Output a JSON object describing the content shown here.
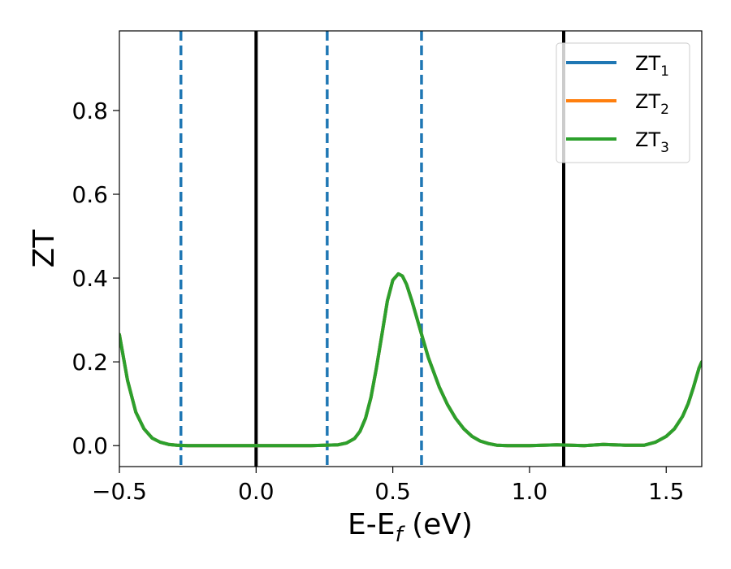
{
  "chart_data": {
    "type": "line",
    "xlabel_main": "E-E",
    "xlabel_sub": "f",
    "xlabel_unit": " (eV)",
    "ylabel": "ZT",
    "xlim": [
      -0.5,
      1.63
    ],
    "ylim": [
      -0.05,
      0.99
    ],
    "xticks": [
      -0.5,
      0.0,
      0.5,
      1.0,
      1.5
    ],
    "xtick_labels": [
      "−0.5",
      "0.0",
      "0.5",
      "1.0",
      "1.5"
    ],
    "yticks": [
      0.0,
      0.2,
      0.4,
      0.6,
      0.8
    ],
    "ytick_labels": [
      "0.0",
      "0.2",
      "0.4",
      "0.6",
      "0.8"
    ],
    "grid": false,
    "legend_position": "top-right",
    "vlines_solid": [
      0.0,
      1.125
    ],
    "vlines_dashed": [
      -0.275,
      0.26,
      0.605
    ],
    "colors": {
      "solid_vline": "#000000",
      "dashed_vline": "#1f77b4"
    },
    "series": [
      {
        "name": "ZT",
        "sub": "1",
        "color": "#1f77b4",
        "x": [
          -0.5,
          -0.47,
          -0.44,
          -0.41,
          -0.38,
          -0.35,
          -0.32,
          -0.29,
          -0.25,
          -0.2,
          -0.1,
          0.0,
          0.1,
          0.2,
          0.3,
          0.33,
          0.36,
          0.38,
          0.4,
          0.42,
          0.44,
          0.46,
          0.48,
          0.5,
          0.52,
          0.535,
          0.55,
          0.57,
          0.59,
          0.61,
          0.63,
          0.65,
          0.67,
          0.7,
          0.73,
          0.76,
          0.79,
          0.82,
          0.85,
          0.88,
          0.92,
          1.0,
          1.1,
          1.2,
          1.27,
          1.35,
          1.42,
          1.46,
          1.5,
          1.53,
          1.56,
          1.58,
          1.6,
          1.62,
          1.63
        ],
        "y": [
          0.265,
          0.155,
          0.08,
          0.04,
          0.018,
          0.008,
          0.003,
          0.001,
          0.0,
          0.0,
          0.0,
          0.0,
          0.0,
          0.0,
          0.002,
          0.006,
          0.017,
          0.034,
          0.065,
          0.115,
          0.185,
          0.265,
          0.345,
          0.395,
          0.41,
          0.405,
          0.385,
          0.345,
          0.3,
          0.255,
          0.21,
          0.175,
          0.14,
          0.098,
          0.065,
          0.04,
          0.022,
          0.011,
          0.005,
          0.001,
          0.0,
          0.0,
          0.002,
          0.0,
          0.003,
          0.001,
          0.001,
          0.008,
          0.022,
          0.04,
          0.07,
          0.1,
          0.14,
          0.185,
          0.2
        ]
      },
      {
        "name": "ZT",
        "sub": "2",
        "color": "#ff7f0e",
        "x": [
          -0.5,
          -0.47,
          -0.44,
          -0.41,
          -0.38,
          -0.35,
          -0.32,
          -0.29,
          -0.25,
          -0.2,
          -0.1,
          0.0,
          0.1,
          0.2,
          0.3,
          0.33,
          0.36,
          0.38,
          0.4,
          0.42,
          0.44,
          0.46,
          0.48,
          0.5,
          0.52,
          0.535,
          0.55,
          0.57,
          0.59,
          0.61,
          0.63,
          0.65,
          0.67,
          0.7,
          0.73,
          0.76,
          0.79,
          0.82,
          0.85,
          0.88,
          0.92,
          1.0,
          1.1,
          1.2,
          1.27,
          1.35,
          1.42,
          1.46,
          1.5,
          1.53,
          1.56,
          1.58,
          1.6,
          1.62,
          1.63
        ],
        "y": [
          0.265,
          0.155,
          0.08,
          0.04,
          0.018,
          0.008,
          0.003,
          0.001,
          0.0,
          0.0,
          0.0,
          0.0,
          0.0,
          0.0,
          0.002,
          0.006,
          0.017,
          0.034,
          0.065,
          0.115,
          0.185,
          0.265,
          0.345,
          0.395,
          0.41,
          0.405,
          0.385,
          0.345,
          0.3,
          0.255,
          0.21,
          0.175,
          0.14,
          0.098,
          0.065,
          0.04,
          0.022,
          0.011,
          0.005,
          0.001,
          0.0,
          0.0,
          0.002,
          0.0,
          0.003,
          0.001,
          0.001,
          0.008,
          0.022,
          0.04,
          0.07,
          0.1,
          0.14,
          0.185,
          0.2
        ]
      },
      {
        "name": "ZT",
        "sub": "3",
        "color": "#2ca02c",
        "x": [
          -0.5,
          -0.47,
          -0.44,
          -0.41,
          -0.38,
          -0.35,
          -0.32,
          -0.29,
          -0.25,
          -0.2,
          -0.1,
          0.0,
          0.1,
          0.2,
          0.3,
          0.33,
          0.36,
          0.38,
          0.4,
          0.42,
          0.44,
          0.46,
          0.48,
          0.5,
          0.52,
          0.535,
          0.55,
          0.57,
          0.59,
          0.61,
          0.63,
          0.65,
          0.67,
          0.7,
          0.73,
          0.76,
          0.79,
          0.82,
          0.85,
          0.88,
          0.92,
          1.0,
          1.1,
          1.2,
          1.27,
          1.35,
          1.42,
          1.46,
          1.5,
          1.53,
          1.56,
          1.58,
          1.6,
          1.62,
          1.63
        ],
        "y": [
          0.265,
          0.155,
          0.08,
          0.04,
          0.018,
          0.008,
          0.003,
          0.001,
          0.0,
          0.0,
          0.0,
          0.0,
          0.0,
          0.0,
          0.002,
          0.006,
          0.017,
          0.034,
          0.065,
          0.115,
          0.185,
          0.265,
          0.345,
          0.395,
          0.41,
          0.405,
          0.385,
          0.345,
          0.3,
          0.255,
          0.21,
          0.175,
          0.14,
          0.098,
          0.065,
          0.04,
          0.022,
          0.011,
          0.005,
          0.001,
          0.0,
          0.0,
          0.002,
          0.0,
          0.003,
          0.001,
          0.001,
          0.008,
          0.022,
          0.04,
          0.07,
          0.1,
          0.14,
          0.185,
          0.2
        ]
      }
    ]
  }
}
